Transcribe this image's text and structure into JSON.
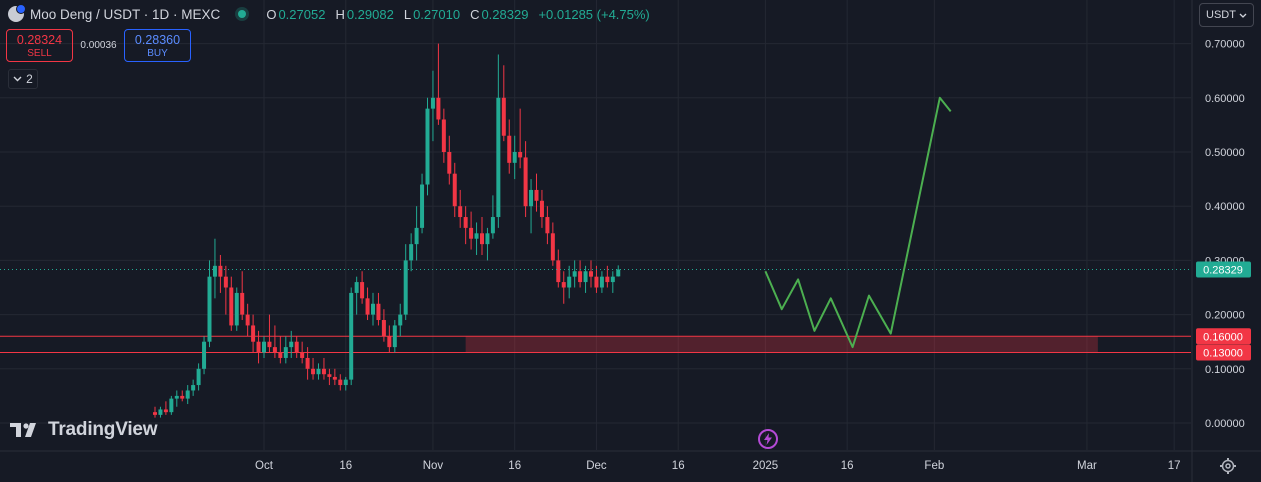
{
  "header": {
    "symbol": "Moo Deng / USDT · 1D · MEXC",
    "ohlc": [
      {
        "key": "O",
        "value": "0.27052"
      },
      {
        "key": "H",
        "value": "0.29082"
      },
      {
        "key": "L",
        "value": "0.27010"
      },
      {
        "key": "C",
        "value": "0.28329"
      }
    ],
    "change": "+0.01285 (+4.75%)"
  },
  "trade": {
    "sell_price": "0.28324",
    "sell_label": "SELL",
    "spread": "0.00036",
    "buy_price": "0.28360",
    "buy_label": "BUY"
  },
  "indicators_count": "2",
  "currency": "USDT",
  "brand": "TradingView",
  "icons": {
    "coin": "coin-icon",
    "live": "live-status-icon",
    "collapse": "chevron-down-icon",
    "currency": "chevron-down-icon",
    "logo": "tradingview-logo-icon",
    "bolt": "lightning-icon",
    "settings": "gear-icon"
  },
  "colors": {
    "background": "#161a25",
    "up": "#22ab94",
    "down": "#f23645",
    "projection": "#4caf50",
    "zone": "#f23645"
  },
  "chart_data": {
    "type": "candlestick",
    "title": "Moo Deng / USDT · 1D · MEXC",
    "ylim": [
      -0.03,
      0.72
    ],
    "y_ticks": [
      "0.70000",
      "0.60000",
      "0.50000",
      "0.40000",
      "0.30000",
      "0.20000",
      "0.10000",
      "0.00000"
    ],
    "x_ticks": [
      {
        "label": "Oct",
        "day": 0
      },
      {
        "label": "16",
        "day": 15
      },
      {
        "label": "Nov",
        "day": 31
      },
      {
        "label": "16",
        "day": 46
      },
      {
        "label": "Dec",
        "day": 61
      },
      {
        "label": "16",
        "day": 76
      },
      {
        "label": "2025",
        "day": 92
      },
      {
        "label": "16",
        "day": 107
      },
      {
        "label": "Feb",
        "day": 123
      },
      {
        "label": "Mar",
        "day": 151
      },
      {
        "label": "17",
        "day": 167
      }
    ],
    "candle_start": "2024-09-11",
    "candles": [
      [
        0.02,
        0.03,
        0.01,
        0.015
      ],
      [
        0.015,
        0.03,
        0.01,
        0.025
      ],
      [
        0.025,
        0.04,
        0.015,
        0.02
      ],
      [
        0.02,
        0.05,
        0.015,
        0.045
      ],
      [
        0.045,
        0.06,
        0.03,
        0.05
      ],
      [
        0.05,
        0.06,
        0.04,
        0.045
      ],
      [
        0.045,
        0.07,
        0.035,
        0.06
      ],
      [
        0.06,
        0.08,
        0.05,
        0.07
      ],
      [
        0.07,
        0.11,
        0.06,
        0.1
      ],
      [
        0.1,
        0.16,
        0.09,
        0.15
      ],
      [
        0.15,
        0.3,
        0.14,
        0.27
      ],
      [
        0.27,
        0.34,
        0.23,
        0.29
      ],
      [
        0.29,
        0.31,
        0.24,
        0.27
      ],
      [
        0.27,
        0.29,
        0.2,
        0.25
      ],
      [
        0.25,
        0.27,
        0.17,
        0.18
      ],
      [
        0.18,
        0.25,
        0.17,
        0.24
      ],
      [
        0.24,
        0.28,
        0.19,
        0.2
      ],
      [
        0.2,
        0.22,
        0.16,
        0.18
      ],
      [
        0.18,
        0.2,
        0.13,
        0.15
      ],
      [
        0.15,
        0.17,
        0.11,
        0.13
      ],
      [
        0.13,
        0.16,
        0.12,
        0.15
      ],
      [
        0.15,
        0.2,
        0.13,
        0.14
      ],
      [
        0.14,
        0.18,
        0.12,
        0.13
      ],
      [
        0.13,
        0.16,
        0.11,
        0.12
      ],
      [
        0.12,
        0.16,
        0.11,
        0.14
      ],
      [
        0.14,
        0.17,
        0.12,
        0.15
      ],
      [
        0.15,
        0.16,
        0.12,
        0.13
      ],
      [
        0.13,
        0.15,
        0.11,
        0.12
      ],
      [
        0.12,
        0.14,
        0.08,
        0.1
      ],
      [
        0.1,
        0.12,
        0.08,
        0.09
      ],
      [
        0.09,
        0.11,
        0.08,
        0.1
      ],
      [
        0.1,
        0.12,
        0.08,
        0.09
      ],
      [
        0.09,
        0.1,
        0.07,
        0.085
      ],
      [
        0.085,
        0.1,
        0.07,
        0.08
      ],
      [
        0.08,
        0.09,
        0.06,
        0.07
      ],
      [
        0.07,
        0.085,
        0.06,
        0.08
      ],
      [
        0.08,
        0.25,
        0.07,
        0.24
      ],
      [
        0.24,
        0.27,
        0.2,
        0.26
      ],
      [
        0.26,
        0.28,
        0.22,
        0.23
      ],
      [
        0.23,
        0.25,
        0.19,
        0.2
      ],
      [
        0.2,
        0.24,
        0.18,
        0.22
      ],
      [
        0.22,
        0.24,
        0.18,
        0.19
      ],
      [
        0.19,
        0.21,
        0.15,
        0.16
      ],
      [
        0.16,
        0.18,
        0.13,
        0.14
      ],
      [
        0.14,
        0.19,
        0.13,
        0.18
      ],
      [
        0.18,
        0.22,
        0.16,
        0.2
      ],
      [
        0.2,
        0.33,
        0.19,
        0.3
      ],
      [
        0.3,
        0.35,
        0.28,
        0.33
      ],
      [
        0.33,
        0.4,
        0.3,
        0.36
      ],
      [
        0.36,
        0.46,
        0.35,
        0.44
      ],
      [
        0.44,
        0.6,
        0.42,
        0.58
      ],
      [
        0.58,
        0.65,
        0.52,
        0.6
      ],
      [
        0.6,
        0.7,
        0.55,
        0.56
      ],
      [
        0.56,
        0.58,
        0.48,
        0.5
      ],
      [
        0.5,
        0.53,
        0.44,
        0.46
      ],
      [
        0.46,
        0.48,
        0.38,
        0.4
      ],
      [
        0.4,
        0.43,
        0.36,
        0.38
      ],
      [
        0.38,
        0.4,
        0.33,
        0.36
      ],
      [
        0.36,
        0.39,
        0.32,
        0.34
      ],
      [
        0.34,
        0.37,
        0.31,
        0.35
      ],
      [
        0.35,
        0.38,
        0.31,
        0.33
      ],
      [
        0.33,
        0.36,
        0.3,
        0.35
      ],
      [
        0.35,
        0.42,
        0.34,
        0.38
      ],
      [
        0.38,
        0.68,
        0.36,
        0.6
      ],
      [
        0.6,
        0.66,
        0.52,
        0.53
      ],
      [
        0.53,
        0.56,
        0.46,
        0.48
      ],
      [
        0.48,
        0.53,
        0.45,
        0.5
      ],
      [
        0.5,
        0.58,
        0.47,
        0.49
      ],
      [
        0.49,
        0.52,
        0.38,
        0.4
      ],
      [
        0.4,
        0.45,
        0.35,
        0.43
      ],
      [
        0.43,
        0.46,
        0.39,
        0.41
      ],
      [
        0.41,
        0.43,
        0.36,
        0.38
      ],
      [
        0.38,
        0.4,
        0.33,
        0.35
      ],
      [
        0.35,
        0.37,
        0.29,
        0.3
      ],
      [
        0.3,
        0.32,
        0.25,
        0.26
      ],
      [
        0.26,
        0.28,
        0.22,
        0.25
      ],
      [
        0.25,
        0.29,
        0.23,
        0.27
      ],
      [
        0.27,
        0.3,
        0.25,
        0.28
      ],
      [
        0.28,
        0.3,
        0.25,
        0.26
      ],
      [
        0.26,
        0.29,
        0.24,
        0.28
      ],
      [
        0.28,
        0.3,
        0.25,
        0.27
      ],
      [
        0.27,
        0.29,
        0.24,
        0.25
      ],
      [
        0.25,
        0.28,
        0.24,
        0.27
      ],
      [
        0.27,
        0.29,
        0.25,
        0.26
      ],
      [
        0.26,
        0.28,
        0.24,
        0.27
      ],
      [
        0.27052,
        0.29082,
        0.2701,
        0.28329
      ]
    ],
    "zone": {
      "high": 0.16,
      "low": 0.13,
      "high_label": "0.16000",
      "low_label": "0.13000",
      "start_day": 37,
      "end_day": 153
    },
    "last_price": {
      "value": 0.28329,
      "label": "0.28329"
    },
    "projection": [
      [
        92,
        0.28
      ],
      [
        95,
        0.21
      ],
      [
        98,
        0.265
      ],
      [
        101,
        0.17
      ],
      [
        104,
        0.23
      ],
      [
        108,
        0.14
      ],
      [
        111,
        0.235
      ],
      [
        115,
        0.165
      ],
      [
        124,
        0.6
      ],
      [
        126,
        0.575
      ]
    ]
  }
}
